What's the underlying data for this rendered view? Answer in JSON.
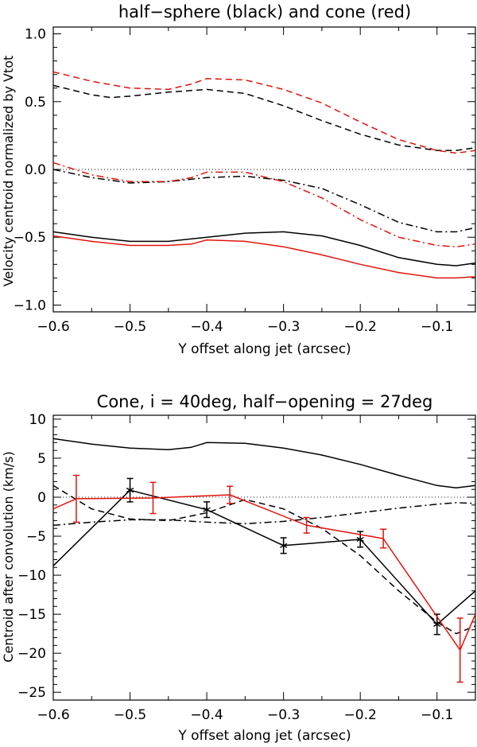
{
  "chart_data": [
    {
      "type": "line",
      "title": "half−sphere (black) and cone (red)",
      "xlabel": "Y offset along jet (arcsec)",
      "ylabel": "Velocity centroid normalized by Vtot",
      "xlim": [
        -0.6,
        -0.05
      ],
      "ylim": [
        -1.05,
        1.05
      ],
      "x_ticks": [
        -0.6,
        -0.5,
        -0.4,
        -0.3,
        -0.2,
        -0.1
      ],
      "x_tick_labels": [
        "−0.6",
        "−0.5",
        "−0.4",
        "−0.3",
        "−0.2",
        "−0.1"
      ],
      "y_ticks": [
        1.0,
        0.5,
        0.0,
        -0.5,
        -1.0
      ],
      "y_tick_labels": [
        "1.0",
        "0.5",
        "0.0",
        "−0.5",
        "−1.0"
      ],
      "reference_line": 0,
      "series": [
        {
          "name": "half-sphere dashed",
          "color": "#000000",
          "dash": "dashed",
          "x": [
            -0.6,
            -0.55,
            -0.525,
            -0.5,
            -0.45,
            -0.4,
            -0.35,
            -0.3,
            -0.25,
            -0.2,
            -0.15,
            -0.1,
            -0.075,
            -0.05
          ],
          "y": [
            0.62,
            0.55,
            0.53,
            0.54,
            0.57,
            0.59,
            0.56,
            0.47,
            0.36,
            0.26,
            0.18,
            0.14,
            0.14,
            0.16
          ]
        },
        {
          "name": "cone dashed",
          "color": "#e0140c",
          "dash": "dashed",
          "x": [
            -0.6,
            -0.55,
            -0.5,
            -0.45,
            -0.42,
            -0.4,
            -0.35,
            -0.3,
            -0.25,
            -0.2,
            -0.15,
            -0.1,
            -0.075,
            -0.05
          ],
          "y": [
            0.72,
            0.65,
            0.6,
            0.59,
            0.63,
            0.67,
            0.66,
            0.59,
            0.49,
            0.35,
            0.22,
            0.14,
            0.12,
            0.14
          ]
        },
        {
          "name": "half-sphere dash-dot",
          "color": "#000000",
          "dash": "dashdot",
          "x": [
            -0.6,
            -0.55,
            -0.5,
            -0.45,
            -0.4,
            -0.35,
            -0.3,
            -0.25,
            -0.2,
            -0.15,
            -0.1,
            -0.075,
            -0.05
          ],
          "y": [
            0.0,
            -0.06,
            -0.1,
            -0.09,
            -0.06,
            -0.05,
            -0.08,
            -0.14,
            -0.26,
            -0.39,
            -0.46,
            -0.46,
            -0.43
          ]
        },
        {
          "name": "cone dash-dot",
          "color": "#e0140c",
          "dash": "dashdot",
          "x": [
            -0.6,
            -0.55,
            -0.5,
            -0.45,
            -0.42,
            -0.4,
            -0.35,
            -0.3,
            -0.25,
            -0.2,
            -0.15,
            -0.1,
            -0.075,
            -0.05
          ],
          "y": [
            0.05,
            -0.04,
            -0.09,
            -0.09,
            -0.06,
            -0.02,
            -0.02,
            -0.09,
            -0.21,
            -0.37,
            -0.5,
            -0.56,
            -0.57,
            -0.55
          ]
        },
        {
          "name": "half-sphere solid",
          "color": "#000000",
          "dash": "solid",
          "x": [
            -0.6,
            -0.55,
            -0.5,
            -0.45,
            -0.4,
            -0.35,
            -0.3,
            -0.25,
            -0.2,
            -0.15,
            -0.1,
            -0.075,
            -0.05
          ],
          "y": [
            -0.46,
            -0.5,
            -0.53,
            -0.53,
            -0.5,
            -0.47,
            -0.46,
            -0.49,
            -0.56,
            -0.65,
            -0.7,
            -0.71,
            -0.69
          ]
        },
        {
          "name": "cone solid",
          "color": "#e0140c",
          "dash": "solid",
          "x": [
            -0.6,
            -0.55,
            -0.5,
            -0.45,
            -0.42,
            -0.4,
            -0.35,
            -0.3,
            -0.25,
            -0.2,
            -0.15,
            -0.1,
            -0.075,
            -0.05
          ],
          "y": [
            -0.49,
            -0.53,
            -0.56,
            -0.56,
            -0.55,
            -0.52,
            -0.53,
            -0.57,
            -0.63,
            -0.7,
            -0.76,
            -0.8,
            -0.8,
            -0.79
          ]
        }
      ]
    },
    {
      "type": "line",
      "title": "Cone, i = 40deg, half−opening = 27deg",
      "xlabel": "Y offset along jet (arcsec)",
      "ylabel": "Centroid after convolution (km/s)",
      "xlim": [
        -0.6,
        -0.05
      ],
      "ylim": [
        -26,
        10.5
      ],
      "x_ticks": [
        -0.6,
        -0.5,
        -0.4,
        -0.3,
        -0.2,
        -0.1
      ],
      "x_tick_labels": [
        "−0.6",
        "−0.5",
        "−0.4",
        "−0.3",
        "−0.2",
        "−0.1"
      ],
      "y_ticks": [
        10,
        5,
        0,
        -5,
        -10,
        -15,
        -20,
        -25
      ],
      "y_tick_labels": [
        "10",
        "5",
        "0",
        "−5",
        "−10",
        "−15",
        "−20",
        "−25"
      ],
      "reference_line": 0,
      "series": [
        {
          "name": "solid model",
          "color": "#000000",
          "dash": "solid",
          "x": [
            -0.6,
            -0.55,
            -0.5,
            -0.45,
            -0.42,
            -0.4,
            -0.35,
            -0.3,
            -0.25,
            -0.2,
            -0.15,
            -0.1,
            -0.075,
            -0.05
          ],
          "y": [
            7.5,
            6.8,
            6.3,
            6.1,
            6.4,
            7.0,
            6.9,
            6.3,
            5.4,
            4.2,
            2.8,
            1.5,
            1.2,
            1.5
          ]
        },
        {
          "name": "dash-dot model",
          "color": "#000000",
          "dash": "dashdot",
          "x": [
            -0.6,
            -0.55,
            -0.5,
            -0.45,
            -0.4,
            -0.35,
            -0.3,
            -0.25,
            -0.2,
            -0.15,
            -0.1,
            -0.075,
            -0.05
          ],
          "y": [
            -3.6,
            -3.2,
            -2.9,
            -2.9,
            -3.2,
            -3.4,
            -3.1,
            -2.6,
            -2.0,
            -1.4,
            -0.9,
            -0.7,
            -0.8
          ]
        },
        {
          "name": "dashed model",
          "color": "#000000",
          "dash": "dashed",
          "x": [
            -0.6,
            -0.55,
            -0.5,
            -0.45,
            -0.4,
            -0.35,
            -0.3,
            -0.25,
            -0.2,
            -0.15,
            -0.1,
            -0.075,
            -0.05
          ],
          "y": [
            1.5,
            -1.5,
            -2.8,
            -3.0,
            -2.0,
            -0.3,
            -1.5,
            -4.0,
            -7.5,
            -12.0,
            -16.0,
            -17.5,
            -16.5
          ]
        },
        {
          "name": "black data",
          "color": "#000000",
          "dash": "solid",
          "markers": "asterisk",
          "x": [
            -0.6,
            -0.5,
            -0.4,
            -0.3,
            -0.2,
            -0.1,
            -0.05
          ],
          "y": [
            -8.8,
            0.9,
            -1.6,
            -6.2,
            -5.4,
            -16.3,
            -12.0
          ],
          "err": [
            0,
            1.5,
            1.0,
            1.0,
            1.0,
            1.3,
            0
          ]
        },
        {
          "name": "red data",
          "color": "#e0140c",
          "dash": "solid",
          "markers": "none",
          "x": [
            -0.6,
            -0.57,
            -0.47,
            -0.37,
            -0.27,
            -0.17,
            -0.07,
            -0.05
          ],
          "y": [
            -1.5,
            -0.2,
            -0.1,
            0.3,
            -3.6,
            -5.3,
            -19.6,
            -15.0
          ],
          "err": [
            0,
            3.0,
            2.0,
            1.1,
            1.0,
            1.2,
            4.1,
            0
          ]
        }
      ]
    }
  ]
}
